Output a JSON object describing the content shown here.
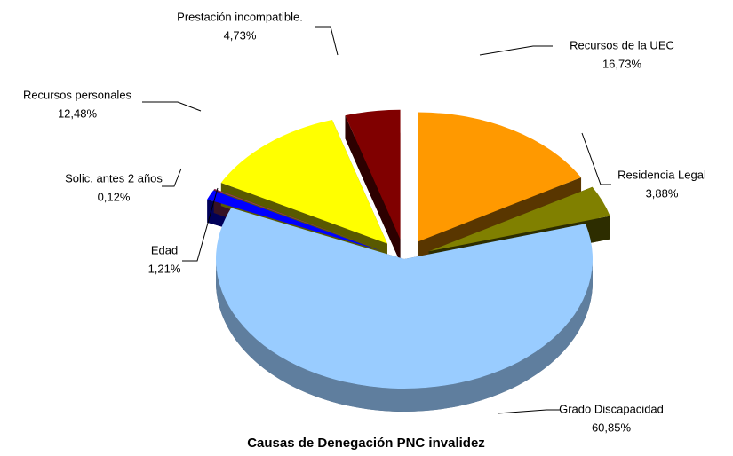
{
  "chart_data": {
    "type": "pie",
    "title": "Causas de Denegación PNC invalidez",
    "categories": [
      "Recursos de la UEC",
      "Residencia Legal",
      "Grado Discapacidad",
      "Edad",
      "Solic. antes 2 años",
      "Recursos personales",
      "Prestación incompatible."
    ],
    "values": [
      16.73,
      3.88,
      60.85,
      1.21,
      0.12,
      12.48,
      4.73
    ],
    "value_labels": [
      "16,73%",
      "3,88%",
      "60,85%",
      "1,21%",
      "0,12%",
      "12,48%",
      "4,73%"
    ],
    "colors": [
      "#ff9900",
      "#808000",
      "#99ccff",
      "#0000ff",
      "#993366",
      "#ffff00",
      "#800000"
    ]
  }
}
